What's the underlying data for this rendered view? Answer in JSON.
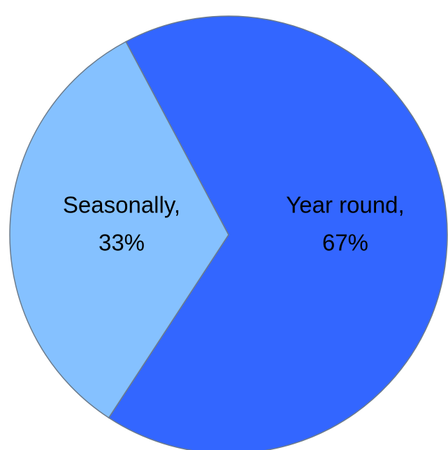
{
  "chart_data": {
    "type": "pie",
    "title": "",
    "slices": [
      {
        "name": "Year round",
        "value": 67,
        "color": "#3366ff",
        "label_line1": "Year round,",
        "label_line2": "67%"
      },
      {
        "name": "Seasonally",
        "value": 33,
        "color": "#85c1ff",
        "label_line1": "Seasonally,",
        "label_line2": "33%"
      }
    ],
    "start_angle_deg": -20,
    "direction": "clockwise",
    "legend": "none",
    "data_labels": "inside"
  }
}
